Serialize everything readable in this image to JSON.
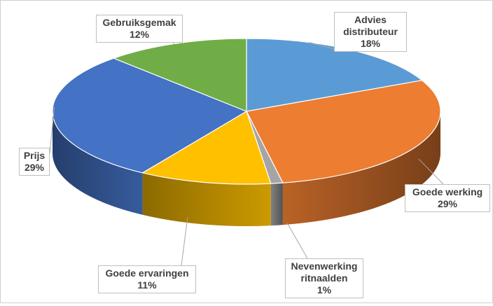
{
  "chart_data": {
    "type": "pie",
    "variant": "3d",
    "title": "",
    "slices": [
      {
        "label_lines": [
          "Advies",
          "distributeur"
        ],
        "value": 18,
        "value_label": "18%",
        "color": "#5b9bd5"
      },
      {
        "label_lines": [
          "Goede werking"
        ],
        "value": 29,
        "value_label": "29%",
        "color": "#ed7d31"
      },
      {
        "label_lines": [
          "Nevenwerking",
          "ritnaalden"
        ],
        "value": 1,
        "value_label": "1%",
        "color": "#a5a5a5"
      },
      {
        "label_lines": [
          "Goede ervaringen"
        ],
        "value": 11,
        "value_label": "11%",
        "color": "#ffc000"
      },
      {
        "label_lines": [
          "Prijs"
        ],
        "value": 29,
        "value_label": "29%",
        "color": "#4472c4"
      },
      {
        "label_lines": [
          "Gebruiksgemak"
        ],
        "value": 12,
        "value_label": "12%",
        "color": "#70ad47"
      }
    ],
    "legend": "none",
    "data_labels": "callouts-with-leader-lines"
  }
}
